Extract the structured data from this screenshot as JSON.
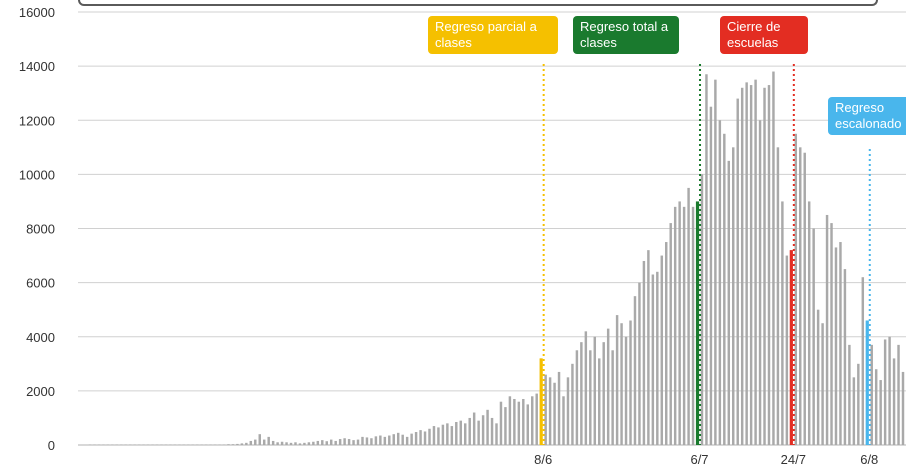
{
  "chart_data": {
    "type": "bar",
    "title": "",
    "xlabel": "",
    "ylabel": "",
    "ylim": [
      0,
      16000
    ],
    "yticks": [
      0,
      2000,
      4000,
      6000,
      8000,
      10000,
      12000,
      14000,
      16000
    ],
    "grid": true,
    "bar_color": "#a9a9a9",
    "day_labels": [
      "8/6",
      "6/7",
      "24/7",
      "6/8"
    ],
    "values": [
      20,
      20,
      20,
      20,
      20,
      20,
      20,
      20,
      20,
      20,
      20,
      20,
      20,
      20,
      20,
      20,
      20,
      20,
      20,
      20,
      20,
      20,
      20,
      20,
      20,
      20,
      20,
      20,
      20,
      20,
      20,
      30,
      30,
      40,
      60,
      80,
      150,
      200,
      400,
      200,
      300,
      150,
      100,
      120,
      100,
      80,
      100,
      60,
      80,
      100,
      120,
      150,
      180,
      140,
      200,
      150,
      220,
      250,
      220,
      180,
      200,
      300,
      280,
      250,
      320,
      350,
      300,
      350,
      400,
      450,
      380,
      300,
      420,
      480,
      550,
      500,
      600,
      700,
      650,
      750,
      800,
      700,
      850,
      900,
      800,
      1000,
      1200,
      900,
      1100,
      1300,
      1000,
      800,
      1600,
      1400,
      1800,
      1700,
      1600,
      1700,
      1500,
      1800,
      1900,
      3200,
      2600,
      2500,
      2300,
      2700,
      1800,
      2500,
      3000,
      3500,
      3800,
      4200,
      3500,
      4000,
      3200,
      3800,
      4300,
      3500,
      4800,
      4500,
      4000,
      4600,
      5500,
      6000,
      6800,
      7200,
      6300,
      6400,
      7000,
      7500,
      8200,
      8800,
      9000,
      8800,
      9500,
      8800,
      9000,
      10000,
      13700,
      12500,
      13500,
      12000,
      11500,
      10500,
      11000,
      12800,
      13200,
      13400,
      13300,
      13500,
      12000,
      13200,
      13300,
      13800,
      11000,
      9000,
      7000,
      7200,
      11500,
      11000,
      10800,
      9000,
      8000,
      5000,
      4500,
      8500,
      8200,
      7300,
      7500,
      6500,
      3700,
      2500,
      3000,
      6200,
      4600,
      3700,
      2800,
      2400,
      3900,
      4000,
      3200,
      3700,
      2700
    ]
  },
  "annotations": [
    {
      "text": "Regreso parcial a clases",
      "color": "#f5c000",
      "day_label": "8/6"
    },
    {
      "text": "Regreso total a clases",
      "color": "#1a7a2e",
      "day_label": "6/7"
    },
    {
      "text": "Cierre de escuelas",
      "color": "#e32d22",
      "day_label": "24/7"
    },
    {
      "text": "Regreso escalonado",
      "color": "#49b6ec",
      "day_label": "6/8"
    }
  ]
}
